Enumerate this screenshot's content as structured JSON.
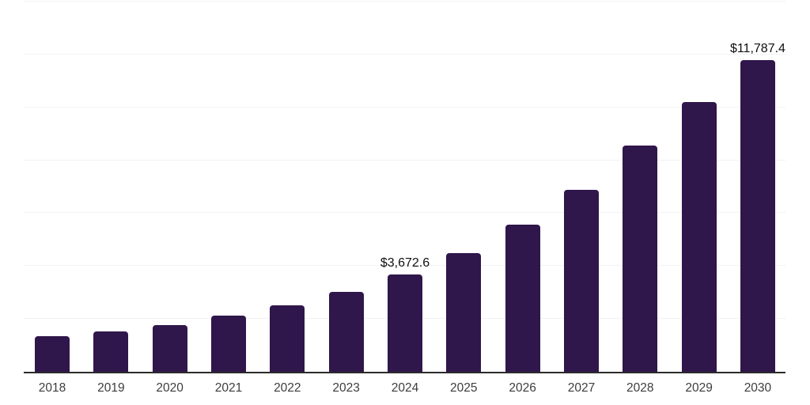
{
  "chart_data": {
    "type": "bar",
    "title": "",
    "xlabel": "",
    "ylabel": "",
    "categories": [
      "2018",
      "2019",
      "2020",
      "2021",
      "2022",
      "2023",
      "2024",
      "2025",
      "2026",
      "2027",
      "2028",
      "2029",
      "2030"
    ],
    "values": [
      1345,
      1525,
      1765,
      2120,
      2510,
      3020,
      3672.6,
      4500,
      5560,
      6880,
      8555,
      10215,
      11787.4
    ],
    "data_labels": [
      "",
      "",
      "",
      "",
      "",
      "",
      "$3,672.6",
      "",
      "",
      "",
      "",
      "",
      "$11,787.4"
    ],
    "ylim": [
      0,
      14000
    ],
    "gridline_step": 2000,
    "grid": true,
    "legend": "none",
    "colors": {
      "bar": "#2f164b",
      "axis_line": "#2b2b2b",
      "gridline": "#f2f2f2",
      "tick_label": "#3d3d3d",
      "value_label": "#0f0f0f",
      "background": "#ffffff"
    }
  }
}
